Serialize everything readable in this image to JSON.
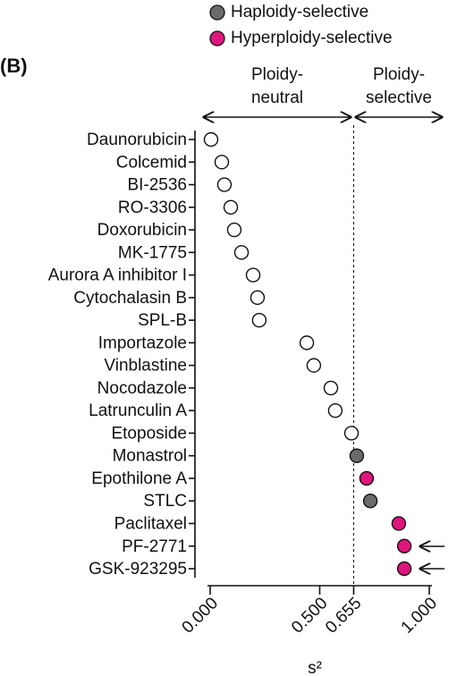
{
  "chart_data": {
    "type": "dot",
    "panel_label": "(B)",
    "legend": [
      {
        "name": "Haploidy-selective",
        "color": "#6b6b6b"
      },
      {
        "name": "Hyperploidy-selective",
        "color": "#e0157e"
      }
    ],
    "regions": [
      {
        "line1": "Ploidy-",
        "line2": "neutral"
      },
      {
        "line1": "Ploidy-",
        "line2": "selective"
      }
    ],
    "categories": [
      "Daunorubicin",
      "Colcemid",
      "BI-2536",
      "RO-3306",
      "Doxorubicin",
      "MK-1775",
      "Aurora A inhibitor I",
      "Cytochalasin B",
      "SPL-B",
      "Importazole",
      "Vinblastine",
      "Nocodazole",
      "Latrunculin A",
      "Etoposide",
      "Monastrol",
      "Epothilone A",
      "STLC",
      "Paclitaxel",
      "PF-2771",
      "GSK-923295"
    ],
    "values": [
      0.004,
      0.053,
      0.065,
      0.094,
      0.11,
      0.143,
      0.196,
      0.216,
      0.224,
      0.441,
      0.473,
      0.551,
      0.571,
      0.645,
      0.669,
      0.714,
      0.731,
      0.861,
      0.886,
      0.886
    ],
    "point_colors": [
      "#ffffff",
      "#ffffff",
      "#ffffff",
      "#ffffff",
      "#ffffff",
      "#ffffff",
      "#ffffff",
      "#ffffff",
      "#ffffff",
      "#ffffff",
      "#ffffff",
      "#ffffff",
      "#ffffff",
      "#ffffff",
      "#6b6b6b",
      "#e0157e",
      "#6b6b6b",
      "#e0157e",
      "#e0157e",
      "#e0157e"
    ],
    "xlim": [
      0,
      1
    ],
    "xticks": [
      {
        "value": 0,
        "label": "0.000"
      },
      {
        "value": 0.5,
        "label": "0.500"
      },
      {
        "value": 0.655,
        "label": "0.655"
      },
      {
        "value": 1,
        "label": "1.000"
      }
    ],
    "xlabel": "s²"
  }
}
